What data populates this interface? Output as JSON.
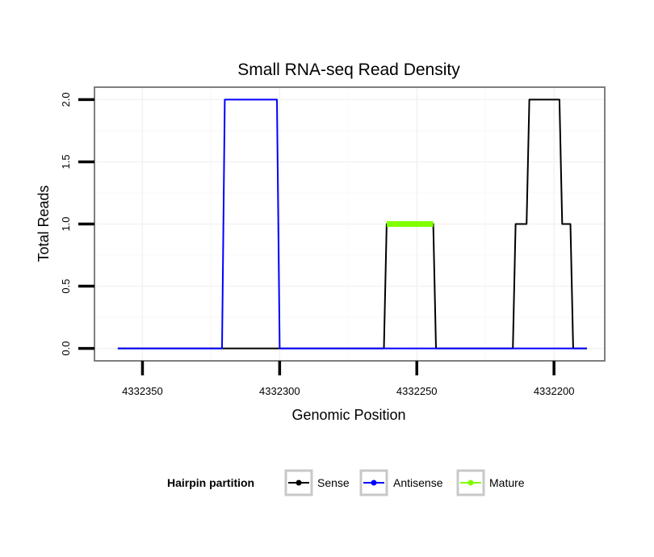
{
  "chart_data": {
    "type": "line",
    "title": "Small RNA-seq Read Density",
    "xlabel": "Genomic Position",
    "ylabel": "Total Reads",
    "xlim": [
      4332367.5,
      4332181.5
    ],
    "ylim": [
      -0.1,
      2.1
    ],
    "x_reversed": true,
    "grid": true,
    "xticks": [
      4332350,
      4332300,
      4332250,
      4332200
    ],
    "xtick_labels": [
      "4332350",
      "4332300",
      "4332250",
      "4332200"
    ],
    "yticks": [
      0.0,
      0.5,
      1.0,
      1.5,
      2.0
    ],
    "ytick_labels": [
      "0.0",
      "0.5",
      "1.0",
      "1.5",
      "2.0"
    ],
    "legend": {
      "title": "Hairpin partition",
      "position": "bottom",
      "entries": [
        "Sense",
        "Antisense",
        "Mature"
      ]
    },
    "series": [
      {
        "name": "Sense",
        "color": "#000000",
        "x": [
          4332359,
          4332262,
          4332261,
          4332244,
          4332243,
          4332215,
          4332214,
          4332210,
          4332209,
          4332198,
          4332197,
          4332194,
          4332193,
          4332188
        ],
        "y": [
          0,
          0,
          1,
          1,
          0,
          0,
          1,
          1,
          2,
          2,
          1,
          1,
          0,
          0
        ]
      },
      {
        "name": "Antisense",
        "color": "#0000ff",
        "x": [
          4332359,
          4332321,
          4332320,
          4332301,
          4332300,
          4332188
        ],
        "y": [
          0,
          0,
          2,
          2,
          0,
          0
        ]
      },
      {
        "name": "Mature",
        "color": "#7fff00",
        "x": [
          4332261,
          4332244
        ],
        "y": [
          1,
          1
        ]
      }
    ]
  }
}
